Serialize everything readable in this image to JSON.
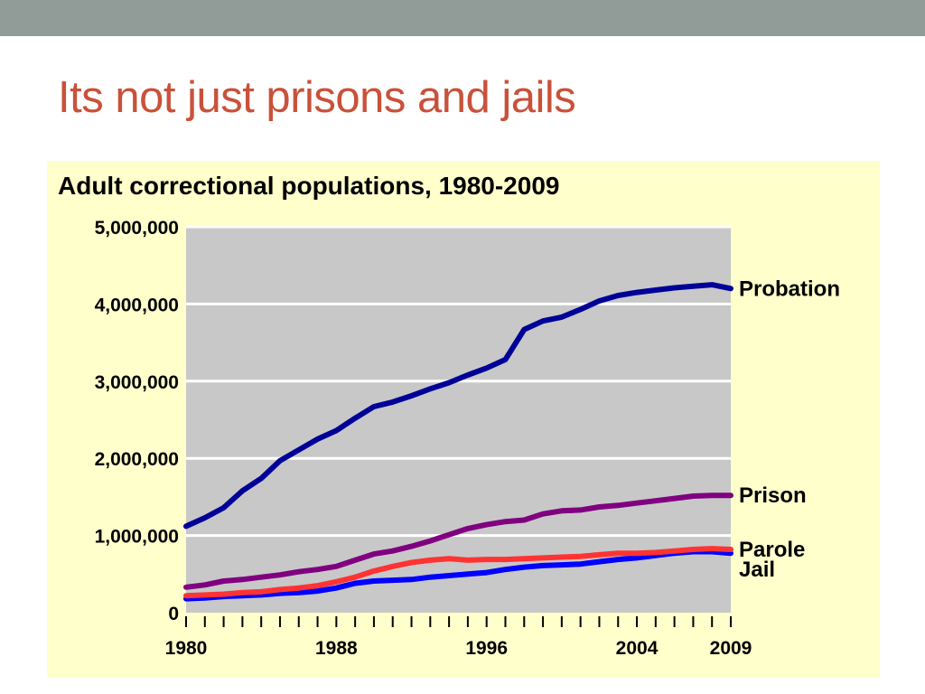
{
  "slide": {
    "title": "Its not just prisons and jails"
  },
  "colors": {
    "top_bar": "#919c98",
    "title": "#c9513a",
    "panel": "#ffffcc",
    "plot_bg": "#c8c8c8",
    "gridline": "#ffffff"
  },
  "chart_data": {
    "type": "line",
    "title": "Adult correctional populations, 1980-2009",
    "xlabel": "",
    "ylabel": "",
    "xlim": [
      1980,
      2009
    ],
    "ylim": [
      0,
      5000000
    ],
    "grid": true,
    "y_ticks": [
      {
        "value": 0,
        "label": "0"
      },
      {
        "value": 1000000,
        "label": "1,000,000"
      },
      {
        "value": 2000000,
        "label": "2,000,000"
      },
      {
        "value": 3000000,
        "label": "3,000,000"
      },
      {
        "value": 4000000,
        "label": "4,000,000"
      },
      {
        "value": 5000000,
        "label": "5,000,000"
      }
    ],
    "x_tick_labels": [
      {
        "value": 1980,
        "label": "1980"
      },
      {
        "value": 1988,
        "label": "1988"
      },
      {
        "value": 1996,
        "label": "1996"
      },
      {
        "value": 2004,
        "label": "2004"
      },
      {
        "value": 2009,
        "label": "2009"
      }
    ],
    "x": [
      1980,
      1981,
      1982,
      1983,
      1984,
      1985,
      1986,
      1987,
      1988,
      1989,
      1990,
      1991,
      1992,
      1993,
      1994,
      1995,
      1996,
      1997,
      1998,
      1999,
      2000,
      2001,
      2002,
      2003,
      2004,
      2005,
      2006,
      2007,
      2008,
      2009
    ],
    "series": [
      {
        "name": "Probation",
        "color": "#000099",
        "values": [
          1120000,
          1230000,
          1360000,
          1580000,
          1740000,
          1970000,
          2110000,
          2250000,
          2360000,
          2520000,
          2670000,
          2730000,
          2810000,
          2900000,
          2980000,
          3080000,
          3170000,
          3280000,
          3670000,
          3780000,
          3830000,
          3930000,
          4040000,
          4110000,
          4150000,
          4180000,
          4210000,
          4230000,
          4250000,
          4200000
        ]
      },
      {
        "name": "Prison",
        "color": "#800080",
        "values": [
          330000,
          360000,
          410000,
          430000,
          460000,
          490000,
          530000,
          560000,
          600000,
          680000,
          760000,
          800000,
          860000,
          930000,
          1010000,
          1090000,
          1140000,
          1180000,
          1200000,
          1280000,
          1320000,
          1330000,
          1370000,
          1390000,
          1420000,
          1450000,
          1480000,
          1510000,
          1520000,
          1520000
        ]
      },
      {
        "name": "Parole",
        "color": "#ff3333",
        "values": [
          220000,
          230000,
          240000,
          260000,
          270000,
          300000,
          320000,
          350000,
          400000,
          460000,
          540000,
          600000,
          650000,
          680000,
          700000,
          680000,
          690000,
          690000,
          700000,
          710000,
          720000,
          730000,
          750000,
          770000,
          770000,
          780000,
          800000,
          820000,
          830000,
          820000
        ]
      },
      {
        "name": "Jail",
        "color": "#0000ff",
        "values": [
          180000,
          190000,
          210000,
          220000,
          230000,
          250000,
          260000,
          280000,
          320000,
          380000,
          410000,
          420000,
          430000,
          460000,
          480000,
          500000,
          520000,
          560000,
          590000,
          610000,
          620000,
          630000,
          660000,
          690000,
          710000,
          740000,
          770000,
          790000,
          790000,
          770000
        ]
      }
    ]
  }
}
